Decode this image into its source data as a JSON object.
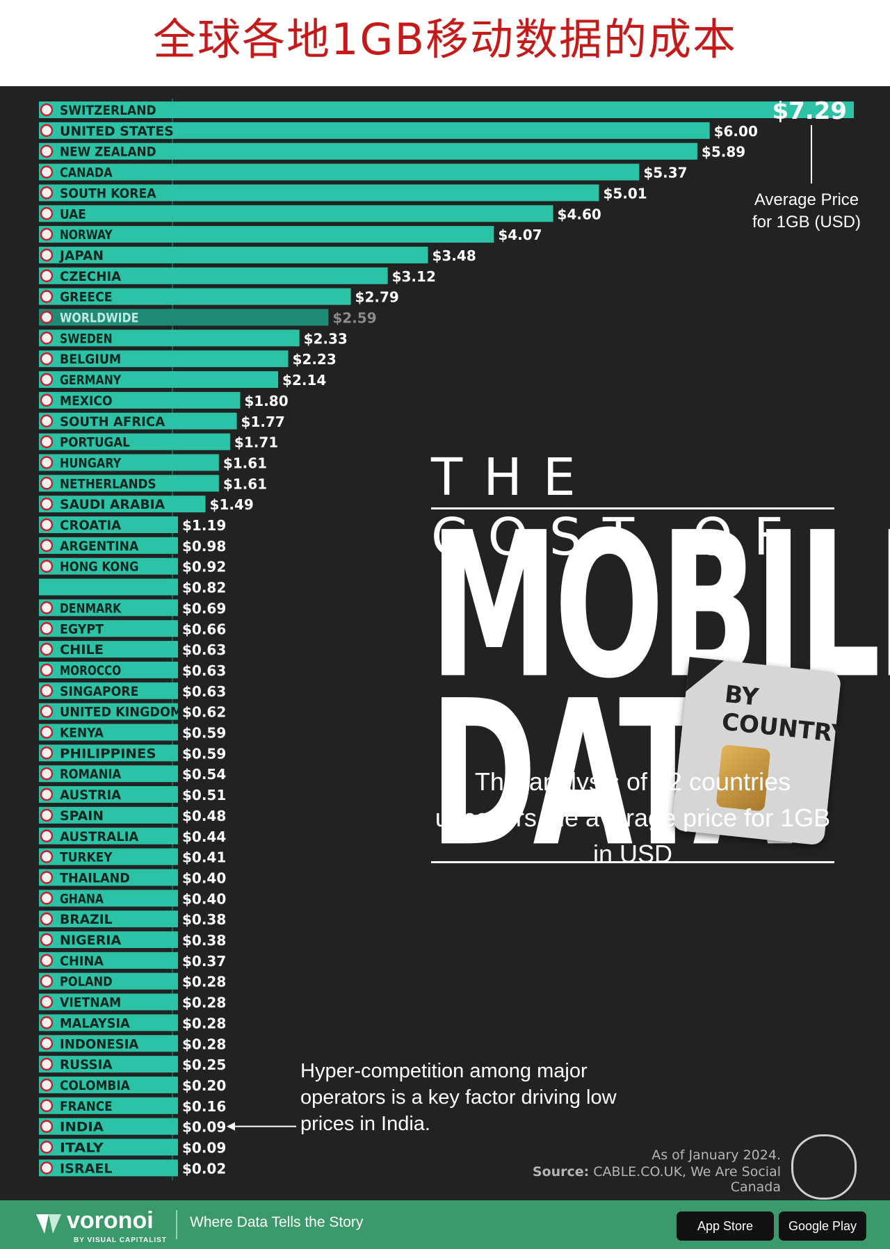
{
  "page_title": "全球各地1GB移动数据的成本",
  "headline": {
    "line1": "THE COST OF",
    "line2": "MOBILE",
    "line3": "DATA",
    "badge_line1": "BY",
    "badge_line2": "COUNTRY"
  },
  "subtitle": "This analysis of 52 countries uncovers the average price for 1GB in USD",
  "annotations": {
    "average_price": "Average Price for 1GB (USD)",
    "india_note": "Hyper-competition among major operators is a key factor driving low prices in India."
  },
  "footnote": {
    "date": "As of January 2024.",
    "source_label": "Source:",
    "source_text": "CABLE.CO.UK, We Are Social Canada"
  },
  "footer": {
    "brand": "voronoi",
    "brand_sub": "BY VISUAL CAPITALIST",
    "tagline": "Where Data Tells the Story",
    "app_store": "App Store",
    "google_play": "Google Play"
  },
  "colors": {
    "bar": "#2cc2a6",
    "bar_highlight": "#1f8a76",
    "background": "#222222",
    "title": "#c41a1a",
    "footer": "#3a9a6c"
  },
  "chart_data": {
    "type": "bar",
    "orientation": "horizontal",
    "ylabel": "Average Price for 1GB (USD)",
    "xlim": [
      0,
      7.29
    ],
    "categories": [
      "SWITZERLAND",
      "UNITED STATES",
      "NEW ZEALAND",
      "CANADA",
      "SOUTH KOREA",
      "UAE",
      "NORWAY",
      "JAPAN",
      "CZECHIA",
      "GREECE",
      "WORLDWIDE",
      "SWEDEN",
      "BELGIUM",
      "GERMANY",
      "MEXICO",
      "SOUTH AFRICA",
      "PORTUGAL",
      "HUNGARY",
      "NETHERLANDS",
      "SAUDI ARABIA",
      "CROATIA",
      "ARGENTINA",
      "HONG KONG",
      "",
      "DENMARK",
      "EGYPT",
      "CHILE",
      "MOROCCO",
      "SINGAPORE",
      "UNITED KINGDOM",
      "KENYA",
      "PHILIPPINES",
      "ROMANIA",
      "AUSTRIA",
      "SPAIN",
      "AUSTRALIA",
      "TURKEY",
      "THAILAND",
      "GHANA",
      "BRAZIL",
      "NIGERIA",
      "CHINA",
      "POLAND",
      "VIETNAM",
      "MALAYSIA",
      "INDONESIA",
      "RUSSIA",
      "COLOMBIA",
      "FRANCE",
      "INDIA",
      "ITALY",
      "ISRAEL"
    ],
    "values": [
      7.29,
      6.0,
      5.89,
      5.37,
      5.01,
      4.6,
      4.07,
      3.48,
      3.12,
      2.79,
      2.59,
      2.33,
      2.23,
      2.14,
      1.8,
      1.77,
      1.71,
      1.61,
      1.61,
      1.49,
      1.19,
      0.98,
      0.92,
      0.82,
      0.69,
      0.66,
      0.63,
      0.63,
      0.63,
      0.62,
      0.59,
      0.59,
      0.54,
      0.51,
      0.48,
      0.44,
      0.41,
      0.4,
      0.4,
      0.38,
      0.38,
      0.37,
      0.28,
      0.28,
      0.28,
      0.28,
      0.25,
      0.2,
      0.16,
      0.09,
      0.09,
      0.02
    ],
    "value_labels": [
      "$7.29",
      "$6.00",
      "$5.89",
      "$5.37",
      "$5.01",
      "$4.60",
      "$4.07",
      "$3.48",
      "$3.12",
      "$2.79",
      "$2.59",
      "$2.33",
      "$2.23",
      "$2.14",
      "$1.80",
      "$1.77",
      "$1.71",
      "$1.61",
      "$1.61",
      "$1.49",
      "$1.19",
      "$0.98",
      "$0.92",
      "$0.82",
      "$0.69",
      "$0.66",
      "$0.63",
      "$0.63",
      "$0.63",
      "$0.62",
      "$0.59",
      "$0.59",
      "$0.54",
      "$0.51",
      "$0.48",
      "$0.44",
      "$0.41",
      "$0.40",
      "$0.40",
      "$0.38",
      "$0.38",
      "$0.37",
      "$0.28",
      "$0.28",
      "$0.28",
      "$0.28",
      "$0.25",
      "$0.20",
      "$0.16",
      "$0.09",
      "$0.09",
      "$0.02"
    ],
    "highlight": "WORLDWIDE"
  }
}
